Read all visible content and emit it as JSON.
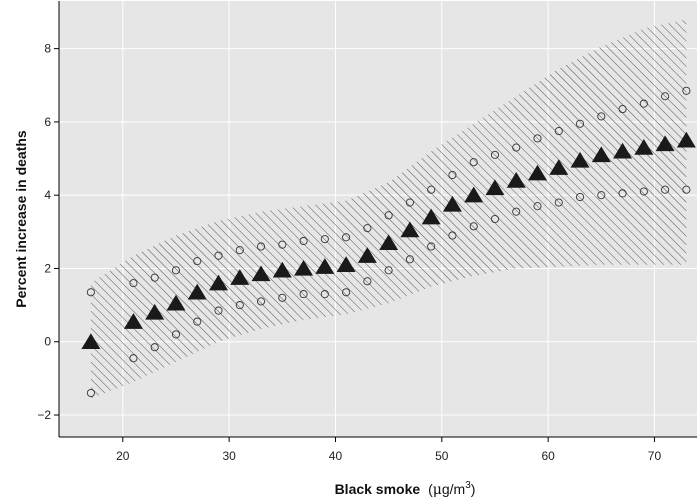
{
  "chart_data": {
    "type": "scatter",
    "title": "",
    "xlabel_main": "Black smoke",
    "xlabel_unit_pre": "(",
    "xlabel_unit_mu": "μ",
    "xlabel_unit_g": "g/m",
    "xlabel_unit_sup": "3",
    "xlabel_unit_post": ")",
    "ylabel": "Percent increase in deaths",
    "xlim": [
      14,
      74
    ],
    "ylim": [
      -2.6,
      9.3
    ],
    "x_ticks": [
      20,
      30,
      40,
      50,
      60,
      70
    ],
    "y_ticks": [
      -2,
      0,
      2,
      4,
      6,
      8
    ],
    "grid": true,
    "series": [
      {
        "marker": "triangle",
        "x": [
          17,
          21,
          23,
          25,
          27,
          29,
          31,
          33,
          35,
          37,
          39,
          41,
          43,
          45,
          47,
          49,
          51,
          53,
          55,
          57,
          59,
          61,
          63,
          65,
          67,
          69,
          71,
          73
        ],
        "y": [
          0.0,
          0.55,
          0.8,
          1.05,
          1.35,
          1.6,
          1.75,
          1.85,
          1.95,
          2.0,
          2.05,
          2.1,
          2.35,
          2.7,
          3.05,
          3.4,
          3.75,
          4.0,
          4.2,
          4.4,
          4.6,
          4.75,
          4.95,
          5.1,
          5.2,
          5.3,
          5.4,
          5.5
        ]
      },
      {
        "marker": "circle",
        "x": [
          17,
          21,
          23,
          25,
          27,
          29,
          31,
          33,
          35,
          37,
          39,
          41,
          43,
          45,
          47,
          49,
          51,
          53,
          55,
          57,
          59,
          61,
          63,
          65,
          67,
          69,
          71,
          73
        ],
        "y": [
          1.35,
          1.6,
          1.75,
          1.95,
          2.2,
          2.35,
          2.5,
          2.6,
          2.65,
          2.75,
          2.8,
          2.85,
          3.1,
          3.45,
          3.8,
          4.15,
          4.55,
          4.9,
          5.1,
          5.3,
          5.55,
          5.75,
          5.95,
          6.15,
          6.35,
          6.5,
          6.7,
          6.85
        ]
      },
      {
        "marker": "circle",
        "x": [
          17,
          21,
          23,
          25,
          27,
          29,
          31,
          33,
          35,
          37,
          39,
          41,
          43,
          45,
          47,
          49,
          51,
          53,
          55,
          57,
          59,
          61,
          63,
          65,
          67,
          69,
          71,
          73
        ],
        "y": [
          -1.4,
          -0.45,
          -0.15,
          0.2,
          0.55,
          0.85,
          1.0,
          1.1,
          1.2,
          1.3,
          1.3,
          1.35,
          1.65,
          1.95,
          2.25,
          2.6,
          2.9,
          3.15,
          3.35,
          3.55,
          3.7,
          3.8,
          3.95,
          4.0,
          4.05,
          4.1,
          4.15,
          4.15
        ]
      }
    ],
    "band": {
      "x": [
        17,
        21,
        25,
        29,
        33,
        37,
        41,
        45,
        49,
        53,
        57,
        61,
        65,
        69,
        73
      ],
      "upper": [
        1.6,
        2.35,
        2.9,
        3.3,
        3.55,
        3.7,
        3.85,
        4.35,
        5.2,
        5.95,
        6.7,
        7.45,
        8.05,
        8.55,
        8.8
      ],
      "lower": [
        -1.55,
        -1.1,
        -0.55,
        0.0,
        0.35,
        0.6,
        0.75,
        1.05,
        1.5,
        1.8,
        2.0,
        2.05,
        2.1,
        2.1,
        2.1
      ]
    },
    "colors": {
      "background": "#e6e6e6",
      "grid": "#ffffff",
      "hatch": "#555555",
      "triangle": "#1a1a1a",
      "circle": "#333333"
    }
  }
}
